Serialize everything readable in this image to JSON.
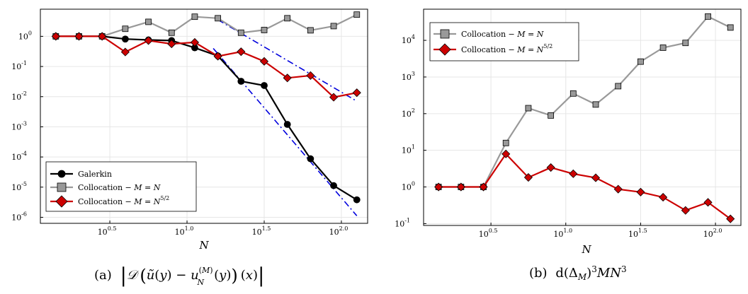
{
  "chart_data": [
    {
      "type": "line",
      "xscale": "log10",
      "yscale": "log10",
      "x_tick_exponents": [
        "0.5",
        "1.0",
        "1.5",
        "2.0"
      ],
      "y_tick_exponents": [
        "0",
        "-1",
        "-2",
        "-3",
        "-4",
        "-5",
        "-6"
      ],
      "xlabel": "N",
      "xlim_log10": [
        0.05,
        2.17
      ],
      "ylim_log10": [
        -6.2,
        0.9
      ],
      "grid": true,
      "legend_position": "bottom-left",
      "caption_prefix": "(a)",
      "series": [
        {
          "name": "Galerkin",
          "color": "#000000",
          "marker": "circle",
          "log10x": [
            0.15,
            0.3,
            0.45,
            0.6,
            0.75,
            0.9,
            1.05,
            1.2,
            1.35,
            1.5,
            1.65,
            1.8,
            1.95,
            2.1
          ],
          "log10y": [
            0,
            0,
            0,
            -0.09,
            -0.12,
            -0.14,
            -0.38,
            -0.65,
            -1.49,
            -1.63,
            -2.92,
            -4.06,
            -4.95,
            -5.42
          ]
        },
        {
          "name": "Collocation − M = N",
          "color": "#999999",
          "marker": "square",
          "log10x": [
            0.15,
            0.3,
            0.45,
            0.6,
            0.75,
            0.9,
            1.05,
            1.2,
            1.35,
            1.5,
            1.65,
            1.8,
            1.95,
            2.1
          ],
          "log10y": [
            0,
            0,
            0,
            0.25,
            0.48,
            0.12,
            0.65,
            0.6,
            0.12,
            0.21,
            0.6,
            0.2,
            0.34,
            0.72
          ]
        },
        {
          "name": "Collocation − M = N^{5/2}",
          "color": "#cc0000",
          "marker": "diamond",
          "log10x": [
            0.15,
            0.3,
            0.45,
            0.6,
            0.75,
            0.9,
            1.05,
            1.2,
            1.35,
            1.5,
            1.65,
            1.8,
            1.95,
            2.1
          ],
          "log10y": [
            0,
            0,
            0,
            -0.52,
            -0.14,
            -0.25,
            -0.2,
            -0.66,
            -0.51,
            -0.83,
            -1.38,
            -1.3,
            -2.02,
            -1.87
          ]
        }
      ],
      "reference_lines": [
        {
          "style": "dash-dot",
          "color": "#0000dd",
          "log10x": [
            1.17,
            2.1
          ],
          "log10y": [
            -0.4,
            -5.95
          ]
        },
        {
          "style": "dash-dot",
          "color": "#0000dd",
          "log10x": [
            1.2,
            2.1
          ],
          "log10y": [
            0.55,
            -2.15
          ]
        }
      ]
    },
    {
      "type": "line",
      "xscale": "log10",
      "yscale": "log10",
      "x_tick_exponents": [
        "0.5",
        "1.0",
        "1.5",
        "2.0"
      ],
      "y_tick_exponents": [
        "4",
        "3",
        "2",
        "1",
        "0",
        "-1"
      ],
      "xlabel": "N",
      "xlim_log10": [
        0.05,
        2.17
      ],
      "ylim_log10": [
        -1.05,
        4.85
      ],
      "grid": true,
      "legend_position": "top-left",
      "caption_prefix": "(b)",
      "series": [
        {
          "name": "Collocation − M = N",
          "color": "#999999",
          "marker": "square",
          "log10x": [
            0.15,
            0.3,
            0.45,
            0.6,
            0.75,
            0.9,
            1.05,
            1.2,
            1.35,
            1.5,
            1.65,
            1.8,
            1.95,
            2.1
          ],
          "log10y": [
            0,
            0,
            0,
            1.2,
            2.15,
            1.95,
            2.55,
            2.25,
            2.75,
            3.42,
            3.8,
            3.93,
            4.65,
            4.35
          ]
        },
        {
          "name": "Collocation − M = N^{5/2}",
          "color": "#cc0000",
          "marker": "diamond",
          "log10x": [
            0.15,
            0.3,
            0.45,
            0.6,
            0.75,
            0.9,
            1.05,
            1.2,
            1.35,
            1.5,
            1.65,
            1.8,
            1.95,
            2.1
          ],
          "log10y": [
            0,
            0,
            0,
            0.9,
            0.26,
            0.53,
            0.36,
            0.25,
            -0.06,
            -0.14,
            -0.28,
            -0.64,
            -0.42,
            -0.87
          ]
        }
      ],
      "reference_lines": []
    }
  ]
}
